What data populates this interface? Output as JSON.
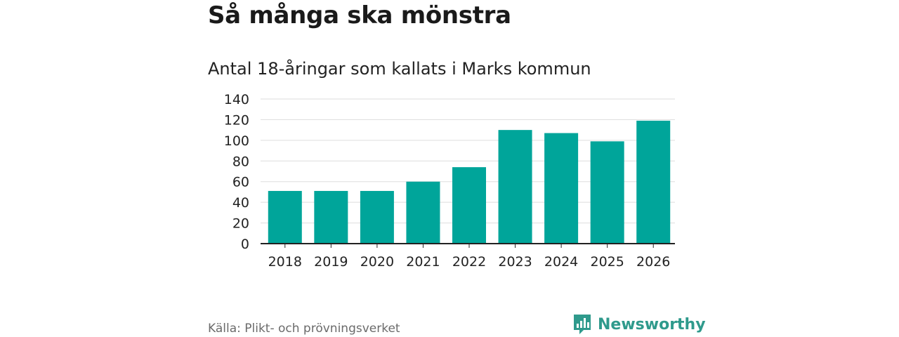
{
  "header": {
    "title": "Så många ska mönstra",
    "subtitle": "Antal 18-åringar som kallats i Marks kommun"
  },
  "footer": {
    "source": "Källa: Plikt- och prövningsverket",
    "brand": "Newsworthy"
  },
  "colors": {
    "bar": "#00a59a",
    "brand": "#2f9a8c",
    "grid": "#dddddd",
    "axis": "#222222"
  },
  "chart_data": {
    "type": "bar",
    "title": "Så många ska mönstra",
    "subtitle": "Antal 18-åringar som kallats i Marks kommun",
    "xlabel": "",
    "ylabel": "",
    "categories": [
      "2018",
      "2019",
      "2020",
      "2021",
      "2022",
      "2023",
      "2024",
      "2025",
      "2026"
    ],
    "values": [
      51,
      51,
      51,
      60,
      74,
      110,
      107,
      99,
      119
    ],
    "ylim": [
      0,
      140
    ],
    "yticks": [
      0,
      20,
      40,
      60,
      80,
      100,
      120,
      140
    ],
    "grid": true,
    "legend": "none"
  }
}
